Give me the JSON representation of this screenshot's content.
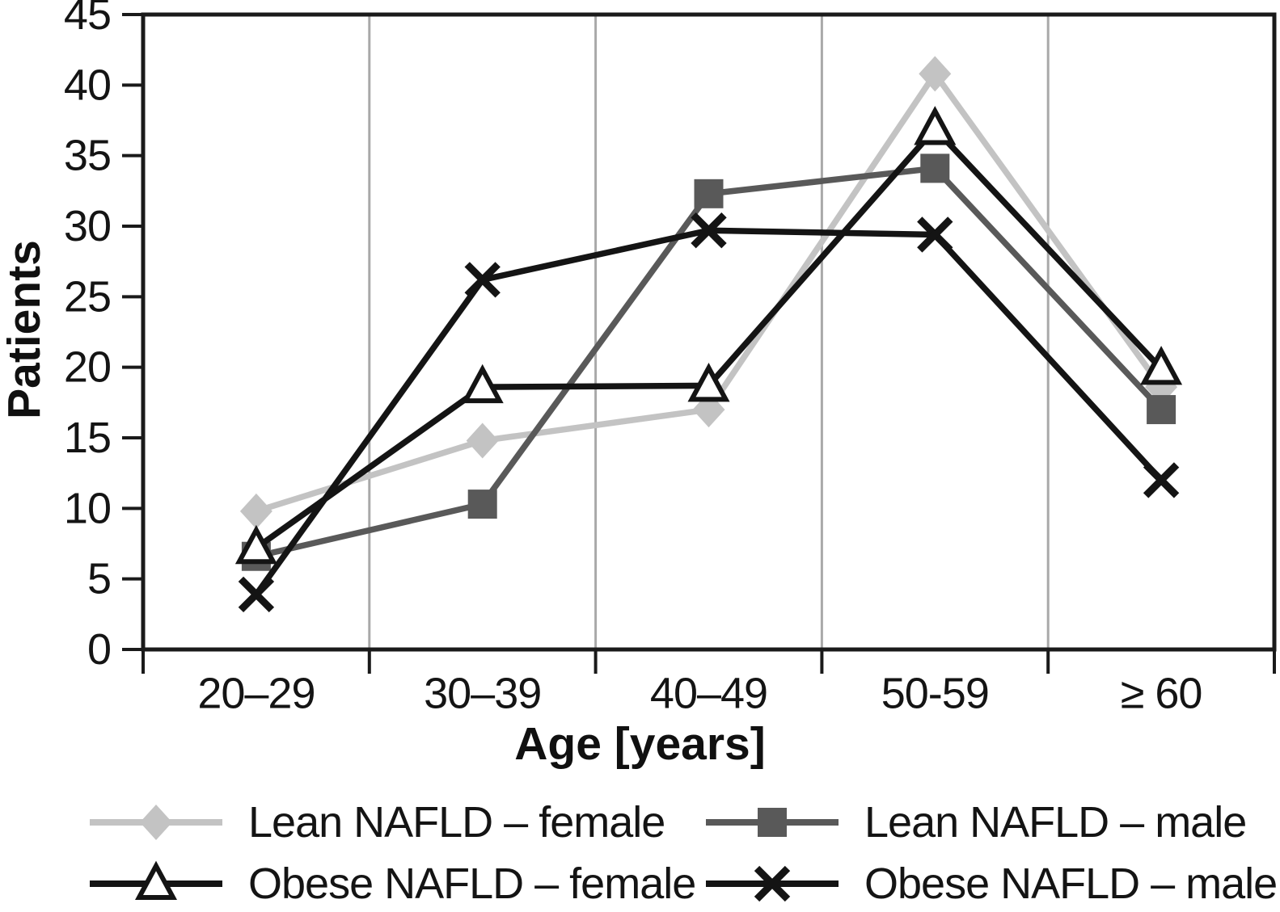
{
  "colors": {
    "background": "#ffffff",
    "gridline": "#a9a9a9",
    "axis": "#1a1a1a",
    "text": "#141414",
    "lean_female": "#c3c3c3",
    "lean_male": "#595959",
    "obese": "#141414"
  },
  "chart_data": {
    "type": "line",
    "title": "",
    "xlabel": "Age [years]",
    "ylabel": "Patients",
    "categories": [
      "20–29",
      "30–39",
      "40–49",
      "50-59",
      "≥ 60"
    ],
    "ylim": [
      0,
      45
    ],
    "yticks": [
      0,
      5,
      10,
      15,
      20,
      25,
      30,
      35,
      40,
      45
    ],
    "grid": "vertical-category-separators",
    "legend_position": "bottom",
    "series": [
      {
        "name": "Lean NAFLD – female",
        "marker": "diamond",
        "color": "#c3c3c3",
        "values": [
          9.8,
          14.8,
          17.0,
          40.8,
          18.6
        ]
      },
      {
        "name": "Lean NAFLD – male",
        "marker": "square",
        "color": "#595959",
        "values": [
          6.6,
          10.3,
          32.3,
          34.1,
          17.0
        ]
      },
      {
        "name": "Obese NAFLD – female",
        "marker": "triangle-open",
        "color": "#141414",
        "values": [
          7.2,
          18.6,
          18.7,
          36.9,
          19.9
        ]
      },
      {
        "name": "Obese NAFLD – male",
        "marker": "x",
        "color": "#141414",
        "values": [
          3.9,
          26.2,
          29.7,
          29.4,
          12.0
        ]
      }
    ],
    "draw_order": [
      0,
      1,
      3,
      2
    ]
  }
}
